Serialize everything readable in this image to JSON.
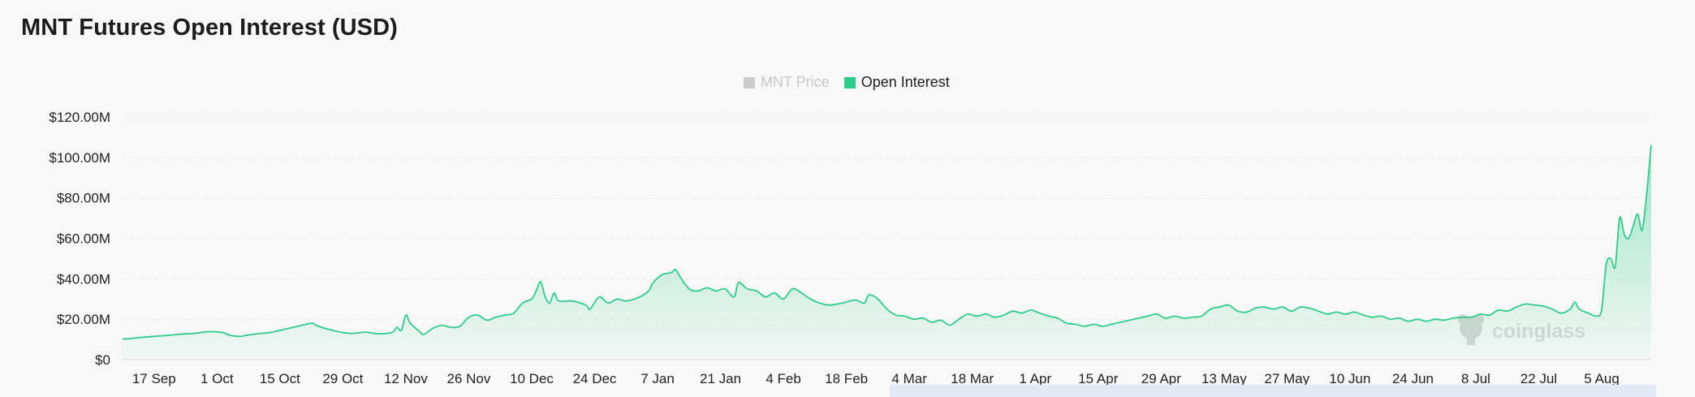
{
  "title": "MNT Futures Open Interest (USD)",
  "legend": [
    {
      "label": "MNT Price",
      "color": "#cccccc",
      "active": false
    },
    {
      "label": "Open Interest",
      "color": "#2ecc8a",
      "active": true
    }
  ],
  "watermark": "coinglass",
  "colors": {
    "line": "#2ecc8a",
    "fill_top": "#2ecc8a",
    "grid": "#ececec",
    "range_bar": "#e4e9f6"
  },
  "chart_data": {
    "type": "area",
    "title": "MNT Futures Open Interest (USD)",
    "ylabel": "",
    "xlabel": "",
    "ylim": [
      0,
      120000000
    ],
    "yticks": [
      {
        "value": 0,
        "label": "$0"
      },
      {
        "value": 20000000,
        "label": "$20.00M"
      },
      {
        "value": 40000000,
        "label": "$40.00M"
      },
      {
        "value": 60000000,
        "label": "$60.00M"
      },
      {
        "value": 80000000,
        "label": "$80.00M"
      },
      {
        "value": 100000000,
        "label": "$100.00M"
      },
      {
        "value": 120000000,
        "label": "$120.00M"
      }
    ],
    "xticks": [
      {
        "day": 7,
        "label": "17 Sep"
      },
      {
        "day": 21,
        "label": "1 Oct"
      },
      {
        "day": 35,
        "label": "15 Oct"
      },
      {
        "day": 49,
        "label": "29 Oct"
      },
      {
        "day": 63,
        "label": "12 Nov"
      },
      {
        "day": 77,
        "label": "26 Nov"
      },
      {
        "day": 91,
        "label": "10 Dec"
      },
      {
        "day": 105,
        "label": "24 Dec"
      },
      {
        "day": 119,
        "label": "7 Jan"
      },
      {
        "day": 133,
        "label": "21 Jan"
      },
      {
        "day": 147,
        "label": "4 Feb"
      },
      {
        "day": 161,
        "label": "18 Feb"
      },
      {
        "day": 175,
        "label": "4 Mar"
      },
      {
        "day": 189,
        "label": "18 Mar"
      },
      {
        "day": 203,
        "label": "1 Apr"
      },
      {
        "day": 217,
        "label": "15 Apr"
      },
      {
        "day": 231,
        "label": "29 Apr"
      },
      {
        "day": 245,
        "label": "13 May"
      },
      {
        "day": 259,
        "label": "27 May"
      },
      {
        "day": 273,
        "label": "10 Jun"
      },
      {
        "day": 287,
        "label": "24 Jun"
      },
      {
        "day": 301,
        "label": "8 Jul"
      },
      {
        "day": 315,
        "label": "22 Jul"
      },
      {
        "day": 329,
        "label": "5 Aug"
      }
    ],
    "xlim": [
      0,
      340
    ],
    "series": [
      {
        "name": "Open Interest",
        "color": "#2ecc8a",
        "points": [
          [
            0,
            10.2
          ],
          [
            2,
            10.5
          ],
          [
            4,
            11.0
          ],
          [
            7,
            11.5
          ],
          [
            10,
            12.0
          ],
          [
            13,
            12.6
          ],
          [
            16,
            13.0
          ],
          [
            19,
            13.8
          ],
          [
            22,
            13.5
          ],
          [
            24,
            12.0
          ],
          [
            26,
            11.5
          ],
          [
            28,
            12.2
          ],
          [
            30,
            12.8
          ],
          [
            33,
            13.5
          ],
          [
            36,
            15.0
          ],
          [
            39,
            16.5
          ],
          [
            42,
            18.0
          ],
          [
            43,
            17.0
          ],
          [
            45,
            15.5
          ],
          [
            48,
            13.8
          ],
          [
            51,
            13.0
          ],
          [
            54,
            13.6
          ],
          [
            57,
            12.8
          ],
          [
            60,
            13.5
          ],
          [
            61,
            16.0
          ],
          [
            62,
            14.5
          ],
          [
            63,
            22.0
          ],
          [
            64,
            18.0
          ],
          [
            66,
            14.0
          ],
          [
            67,
            12.5
          ],
          [
            69,
            15.5
          ],
          [
            71,
            17.0
          ],
          [
            73,
            16.0
          ],
          [
            75,
            16.5
          ],
          [
            77,
            21.0
          ],
          [
            79,
            22.0
          ],
          [
            81,
            19.5
          ],
          [
            83,
            21.0
          ],
          [
            85,
            22.0
          ],
          [
            87,
            23.0
          ],
          [
            89,
            28.0
          ],
          [
            91,
            30.0
          ],
          [
            92,
            34.0
          ],
          [
            93,
            38.5
          ],
          [
            94,
            31.0
          ],
          [
            95,
            28.0
          ],
          [
            96,
            33.0
          ],
          [
            97,
            29.0
          ],
          [
            100,
            29.0
          ],
          [
            103,
            27.0
          ],
          [
            104,
            25.0
          ],
          [
            106,
            31.0
          ],
          [
            108,
            28.0
          ],
          [
            110,
            30.0
          ],
          [
            112,
            29.0
          ],
          [
            115,
            31.0
          ],
          [
            117,
            34.0
          ],
          [
            118,
            38.0
          ],
          [
            120,
            42.0
          ],
          [
            122,
            43.0
          ],
          [
            123,
            44.5
          ],
          [
            124,
            41.0
          ],
          [
            126,
            35.0
          ],
          [
            128,
            34.0
          ],
          [
            130,
            35.5
          ],
          [
            132,
            34.0
          ],
          [
            134,
            35.0
          ],
          [
            136,
            31.0
          ],
          [
            137,
            38.0
          ],
          [
            139,
            35.0
          ],
          [
            141,
            34.0
          ],
          [
            143,
            31.0
          ],
          [
            145,
            33.0
          ],
          [
            147,
            30.0
          ],
          [
            149,
            35.0
          ],
          [
            151,
            33.0
          ],
          [
            153,
            30.0
          ],
          [
            155,
            28.0
          ],
          [
            157,
            27.0
          ],
          [
            159,
            27.5
          ],
          [
            161,
            28.5
          ],
          [
            163,
            29.5
          ],
          [
            165,
            28.0
          ],
          [
            166,
            32.0
          ],
          [
            168,
            30.0
          ],
          [
            170,
            25.0
          ],
          [
            172,
            22.0
          ],
          [
            174,
            21.5
          ],
          [
            176,
            20.0
          ],
          [
            178,
            20.5
          ],
          [
            180,
            18.5
          ],
          [
            182,
            19.5
          ],
          [
            184,
            17.0
          ],
          [
            186,
            20.0
          ],
          [
            188,
            22.5
          ],
          [
            190,
            21.5
          ],
          [
            192,
            22.5
          ],
          [
            194,
            21.0
          ],
          [
            196,
            22.0
          ],
          [
            198,
            24.0
          ],
          [
            200,
            23.0
          ],
          [
            202,
            24.5
          ],
          [
            204,
            23.0
          ],
          [
            206,
            21.5
          ],
          [
            208,
            20.5
          ],
          [
            210,
            18.0
          ],
          [
            212,
            17.5
          ],
          [
            214,
            16.5
          ],
          [
            216,
            17.5
          ],
          [
            218,
            16.5
          ],
          [
            220,
            17.5
          ],
          [
            222,
            18.5
          ],
          [
            224,
            19.5
          ],
          [
            226,
            20.5
          ],
          [
            228,
            21.5
          ],
          [
            230,
            22.5
          ],
          [
            232,
            20.5
          ],
          [
            234,
            21.5
          ],
          [
            236,
            20.5
          ],
          [
            238,
            21.0
          ],
          [
            240,
            21.5
          ],
          [
            242,
            25.0
          ],
          [
            244,
            26.0
          ],
          [
            246,
            27.0
          ],
          [
            248,
            24.0
          ],
          [
            250,
            23.5
          ],
          [
            252,
            25.5
          ],
          [
            254,
            26.0
          ],
          [
            256,
            25.0
          ],
          [
            258,
            26.0
          ],
          [
            260,
            24.0
          ],
          [
            262,
            26.0
          ],
          [
            264,
            25.5
          ],
          [
            266,
            24.0
          ],
          [
            268,
            22.5
          ],
          [
            270,
            23.5
          ],
          [
            272,
            22.5
          ],
          [
            274,
            23.5
          ],
          [
            276,
            22.0
          ],
          [
            278,
            21.0
          ],
          [
            280,
            21.5
          ],
          [
            282,
            20.0
          ],
          [
            284,
            20.5
          ],
          [
            286,
            19.0
          ],
          [
            288,
            20.0
          ],
          [
            290,
            19.0
          ],
          [
            292,
            20.0
          ],
          [
            294,
            19.5
          ],
          [
            296,
            20.5
          ],
          [
            298,
            21.0
          ],
          [
            300,
            21.0
          ],
          [
            302,
            22.5
          ],
          [
            304,
            22.0
          ],
          [
            306,
            24.5
          ],
          [
            308,
            24.0
          ],
          [
            310,
            26.0
          ],
          [
            312,
            27.5
          ],
          [
            314,
            27.0
          ],
          [
            316,
            26.5
          ],
          [
            318,
            25.0
          ],
          [
            320,
            23.0
          ],
          [
            322,
            25.0
          ],
          [
            323,
            28.5
          ],
          [
            324,
            25.0
          ],
          [
            326,
            23.0
          ],
          [
            328,
            21.5
          ],
          [
            329,
            25.0
          ],
          [
            330,
            47.0
          ],
          [
            331,
            50.0
          ],
          [
            332,
            46.0
          ],
          [
            333,
            70.0
          ],
          [
            334,
            62.0
          ],
          [
            335,
            60.0
          ],
          [
            336,
            66.0
          ],
          [
            337,
            72.0
          ],
          [
            338,
            64.0
          ],
          [
            339,
            82.0
          ],
          [
            340,
            106.0
          ]
        ]
      }
    ]
  }
}
